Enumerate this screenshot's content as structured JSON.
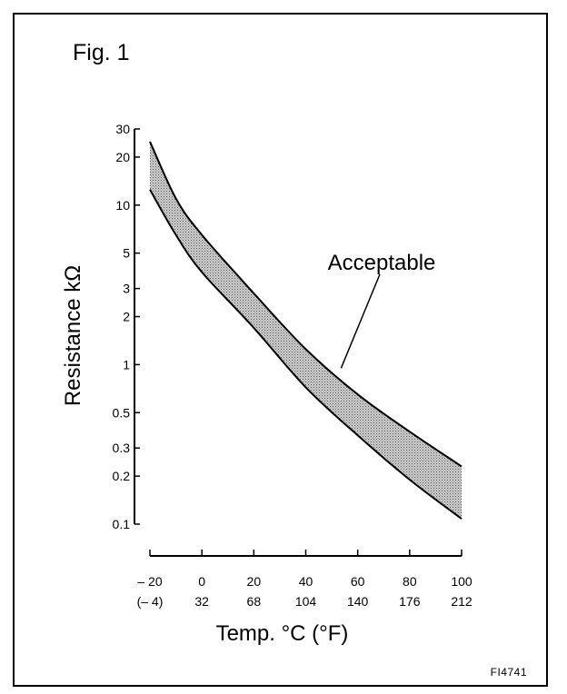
{
  "figure": {
    "title": "Fig. 1",
    "code": "FI4741"
  },
  "chart_data": {
    "type": "area",
    "title": "",
    "ylabel": "Resistance kΩ",
    "xlabel": "Temp. °C (°F)",
    "y_scale": "log",
    "ylim": [
      0.1,
      30
    ],
    "xlim": [
      -20,
      100
    ],
    "y_ticks": [
      {
        "value": 0.1,
        "label": "0.1"
      },
      {
        "value": 0.2,
        "label": "0.2"
      },
      {
        "value": 0.3,
        "label": "0.3"
      },
      {
        "value": 0.5,
        "label": "0.5"
      },
      {
        "value": 1,
        "label": "1"
      },
      {
        "value": 2,
        "label": "2"
      },
      {
        "value": 3,
        "label": "3"
      },
      {
        "value": 5,
        "label": "5"
      },
      {
        "value": 10,
        "label": "10"
      },
      {
        "value": 20,
        "label": "20"
      },
      {
        "value": 30,
        "label": "30"
      }
    ],
    "x_ticks": [
      {
        "value": -20,
        "label_c": "– 20",
        "label_f": "(– 4)"
      },
      {
        "value": 0,
        "label_c": "0",
        "label_f": "32"
      },
      {
        "value": 20,
        "label_c": "20",
        "label_f": "68"
      },
      {
        "value": 40,
        "label_c": "40",
        "label_f": "104"
      },
      {
        "value": 60,
        "label_c": "60",
        "label_f": "140"
      },
      {
        "value": 80,
        "label_c": "80",
        "label_f": "176"
      },
      {
        "value": 100,
        "label_c": "100",
        "label_f": "212"
      }
    ],
    "series": [
      {
        "x": [
          -20,
          -10,
          0,
          20,
          40,
          60,
          80,
          100
        ],
        "values": [
          25,
          11,
          6.5,
          2.8,
          1.25,
          0.65,
          0.38,
          0.23
        ]
      },
      {
        "x": [
          -20,
          -10,
          0,
          20,
          40,
          60,
          80,
          100
        ],
        "values": [
          12.5,
          6.5,
          3.8,
          1.7,
          0.72,
          0.36,
          0.19,
          0.108
        ]
      }
    ],
    "annotation": {
      "text": "Acceptable",
      "x": 55,
      "y": 0.95
    },
    "fill_color": "#b5b5b5",
    "grid": false
  }
}
